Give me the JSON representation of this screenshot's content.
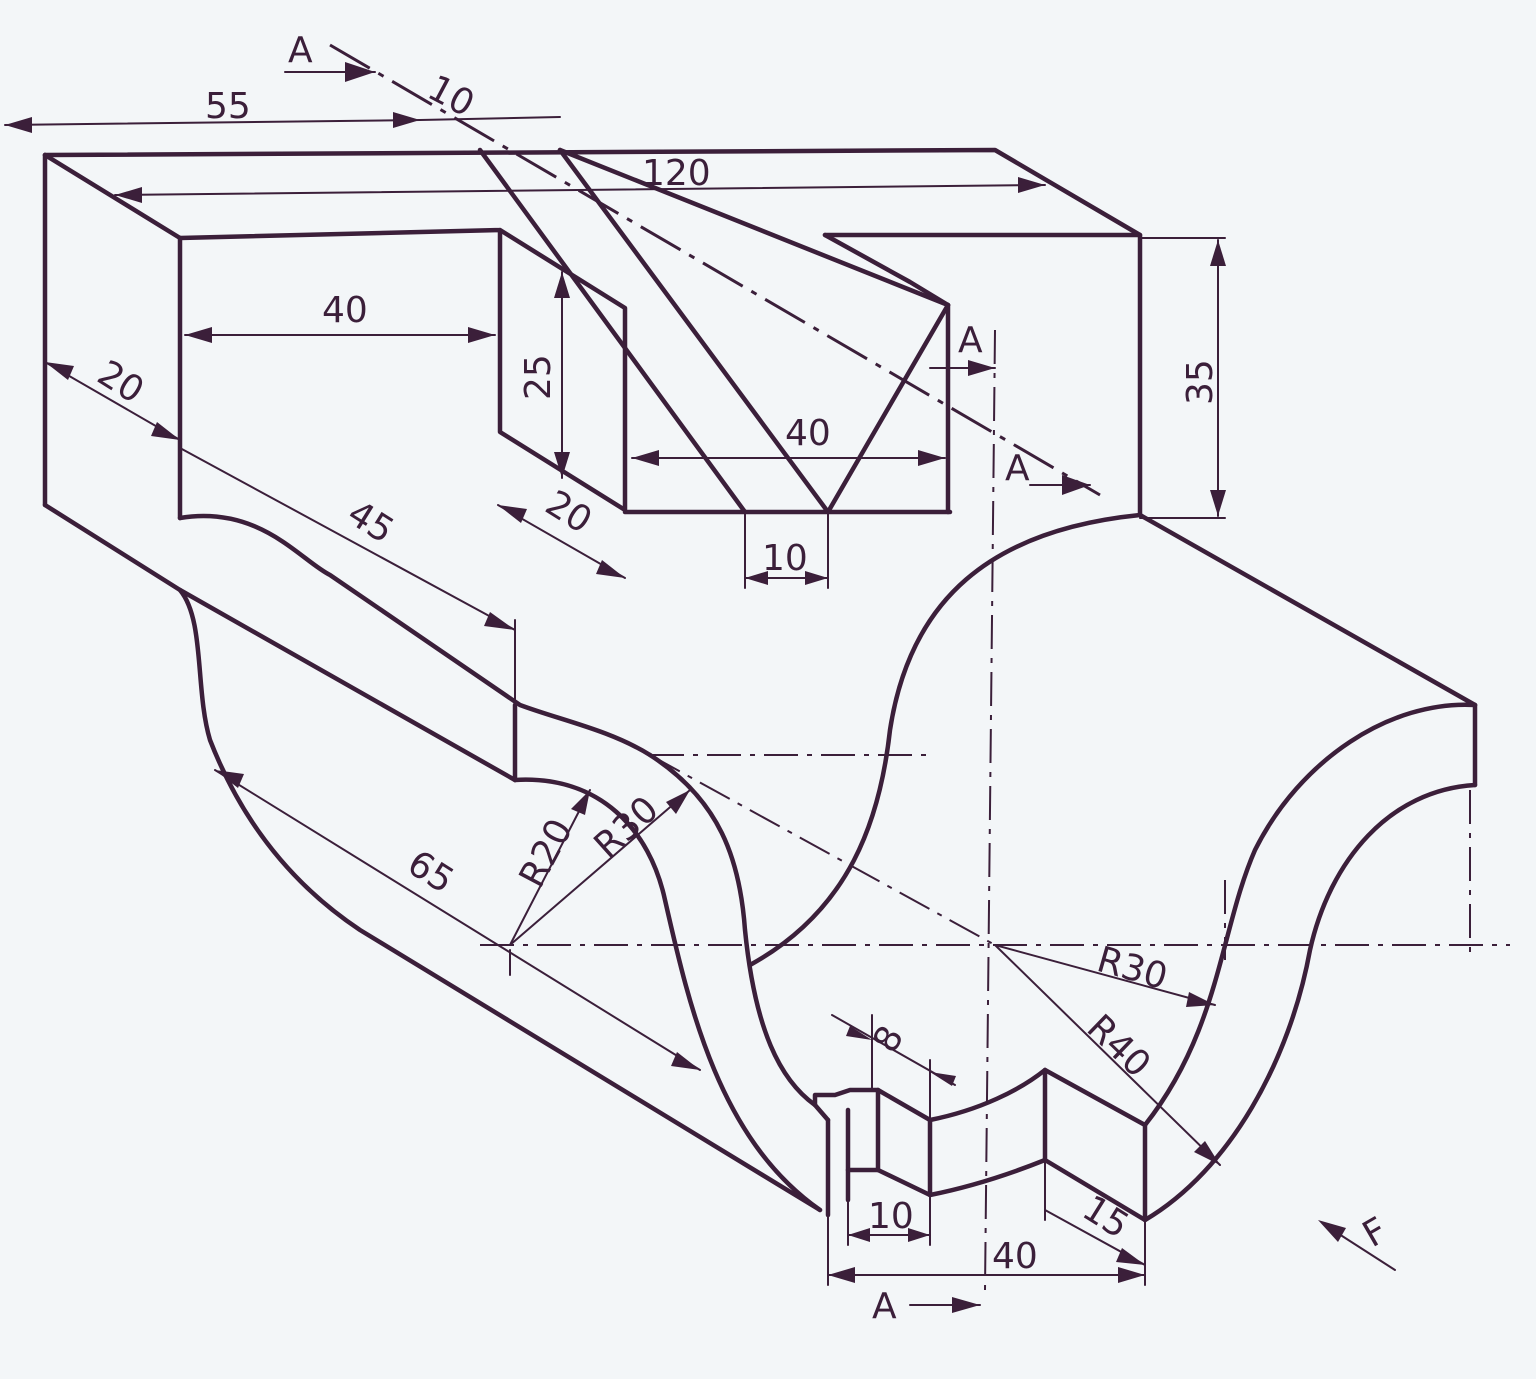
{
  "drawing": {
    "dims": {
      "d55": "55",
      "d10_top": "10",
      "d120": "120",
      "d40_slot": "40",
      "d25": "25",
      "d35": "35",
      "d20_side": "20",
      "d20_step": "20",
      "d40_vee": "40",
      "d10_vee": "10",
      "d45": "45",
      "d65": "65",
      "r20": "R20",
      "r30_left": "R30",
      "r30_right": "R30",
      "r40": "R40",
      "d8": "8",
      "d10_bottom": "10",
      "d40_bottom": "40",
      "d15": "15"
    },
    "section_marks": {
      "top": "A",
      "right_upper": "A",
      "right_arrow": "A",
      "bottom": "A"
    },
    "view_direction": "F",
    "colors": {
      "ink": "#3b1f3a",
      "paper": "#f3f6f8"
    }
  }
}
